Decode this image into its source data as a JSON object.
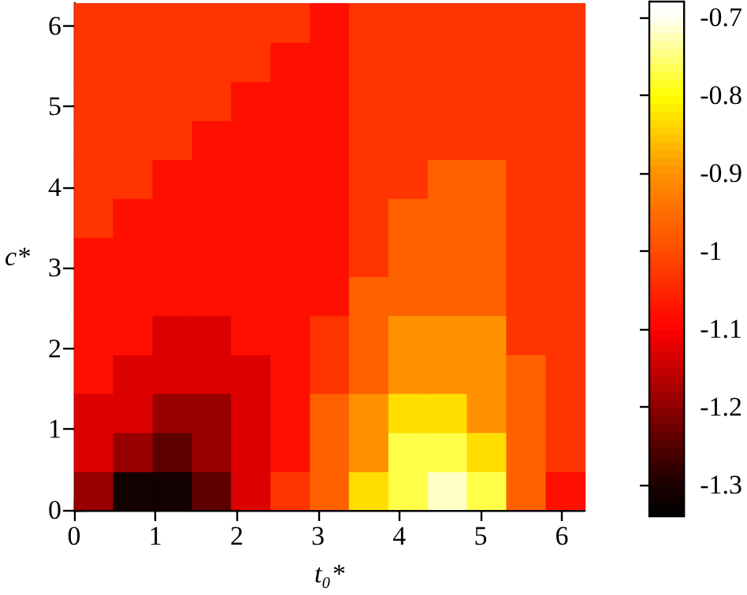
{
  "chart_data": {
    "type": "heatmap",
    "xlabel": "t₀*",
    "ylabel": "c*",
    "x": [
      0.24,
      0.72,
      1.21,
      1.69,
      2.17,
      2.66,
      3.14,
      3.62,
      4.11,
      4.59,
      5.07,
      5.56,
      6.04
    ],
    "y": [
      0.24,
      0.72,
      1.21,
      1.69,
      2.17,
      2.66,
      3.14,
      3.62,
      4.11,
      4.59,
      5.07,
      5.56,
      6.04
    ],
    "cells": [
      [
        -1.19,
        -1.31,
        -1.31,
        -1.24,
        -1.13,
        -1.03,
        -0.97,
        -0.83,
        -0.77,
        -0.72,
        -0.77,
        -0.97,
        -1.08
      ],
      [
        -1.13,
        -1.19,
        -1.24,
        -1.19,
        -1.13,
        -1.08,
        -0.97,
        -0.9,
        -0.77,
        -0.77,
        -0.83,
        -0.97,
        -1.03
      ],
      [
        -1.13,
        -1.13,
        -1.19,
        -1.19,
        -1.13,
        -1.08,
        -0.97,
        -0.9,
        -0.83,
        -0.83,
        -0.9,
        -0.97,
        -1.03
      ],
      [
        -1.08,
        -1.13,
        -1.13,
        -1.13,
        -1.13,
        -1.08,
        -1.03,
        -0.97,
        -0.9,
        -0.9,
        -0.9,
        -0.97,
        -1.03
      ],
      [
        -1.08,
        -1.08,
        -1.13,
        -1.13,
        -1.08,
        -1.08,
        -1.03,
        -0.97,
        -0.9,
        -0.9,
        -0.9,
        -1.03,
        -1.03
      ],
      [
        -1.08,
        -1.08,
        -1.08,
        -1.08,
        -1.08,
        -1.08,
        -1.08,
        -0.97,
        -0.97,
        -0.97,
        -0.97,
        -1.03,
        -1.03
      ],
      [
        -1.08,
        -1.08,
        -1.08,
        -1.08,
        -1.08,
        -1.08,
        -1.08,
        -1.03,
        -0.97,
        -0.97,
        -0.97,
        -1.03,
        -1.03
      ],
      [
        -1.03,
        -1.08,
        -1.08,
        -1.08,
        -1.08,
        -1.08,
        -1.08,
        -1.03,
        -0.97,
        -0.97,
        -0.97,
        -1.03,
        -1.03
      ],
      [
        -1.03,
        -1.03,
        -1.08,
        -1.08,
        -1.08,
        -1.08,
        -1.08,
        -1.03,
        -1.03,
        -0.97,
        -0.97,
        -1.03,
        -1.03
      ],
      [
        -1.03,
        -1.03,
        -1.03,
        -1.08,
        -1.08,
        -1.08,
        -1.08,
        -1.03,
        -1.03,
        -1.03,
        -1.03,
        -1.03,
        -1.03
      ],
      [
        -1.03,
        -1.03,
        -1.03,
        -1.03,
        -1.08,
        -1.08,
        -1.08,
        -1.03,
        -1.03,
        -1.03,
        -1.03,
        -1.03,
        -1.03
      ],
      [
        -1.03,
        -1.03,
        -1.03,
        -1.03,
        -1.03,
        -1.08,
        -1.08,
        -1.03,
        -1.03,
        -1.03,
        -1.03,
        -1.03,
        -1.03
      ],
      [
        -1.03,
        -1.03,
        -1.03,
        -1.03,
        -1.03,
        -1.03,
        -1.08,
        -1.03,
        -1.03,
        -1.03,
        -1.03,
        -1.03,
        -1.03
      ]
    ],
    "xlim": [
      0,
      6.28
    ],
    "xticks": [
      0,
      1,
      2,
      3,
      4,
      5,
      6
    ],
    "ylim": [
      0,
      6.28
    ],
    "yticks": [
      0,
      1,
      2,
      3,
      4,
      5,
      6
    ],
    "clim": [
      -1.34,
      -0.68
    ],
    "cticks": [
      -0.7,
      -0.8,
      -0.9,
      -1,
      -1.1,
      -1.2,
      -1.3
    ]
  }
}
